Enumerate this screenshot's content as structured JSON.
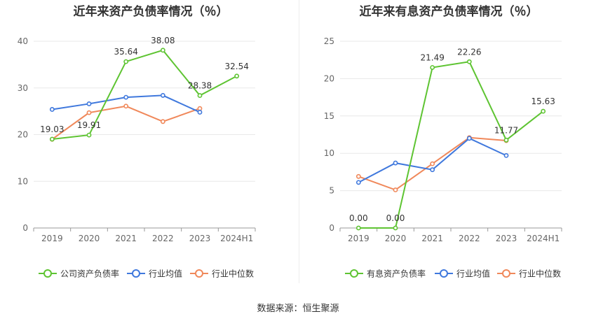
{
  "source_text": "数据来源：恒生聚源",
  "chart_data": [
    {
      "type": "line",
      "title": "近年来资产负债率情况（％）",
      "categories": [
        "2019",
        "2020",
        "2021",
        "2022",
        "2023",
        "2024H1"
      ],
      "ylim": [
        0,
        40
      ],
      "yticks": [
        0,
        10,
        20,
        30,
        40
      ],
      "grid": true,
      "legend_position": "bottom",
      "series": [
        {
          "name": "公司资产负债率",
          "color": "#5ec432",
          "values": [
            19.03,
            19.91,
            35.64,
            38.08,
            28.38,
            32.54
          ],
          "labels": [
            "19.03",
            "19.91",
            "35.64",
            "38.08",
            "28.38",
            "32.54"
          ]
        },
        {
          "name": "行业均值",
          "color": "#3f78dd",
          "values": [
            25.4,
            26.6,
            28.0,
            28.4,
            24.8,
            null
          ]
        },
        {
          "name": "行业中位数",
          "color": "#f0885a",
          "values": [
            19.0,
            24.7,
            26.1,
            22.8,
            25.6,
            null
          ]
        }
      ]
    },
    {
      "type": "line",
      "title": "近年来有息资产负债率情况（％）",
      "categories": [
        "2019",
        "2020",
        "2021",
        "2022",
        "2023",
        "2024H1"
      ],
      "ylim": [
        0,
        25
      ],
      "yticks": [
        0,
        5,
        10,
        15,
        20,
        25
      ],
      "grid": true,
      "legend_position": "bottom",
      "series": [
        {
          "name": "有息资产负债率",
          "color": "#5ec432",
          "values": [
            0.0,
            0.0,
            21.49,
            22.26,
            11.77,
            15.63
          ],
          "labels": [
            "0.00",
            "0.00",
            "21.49",
            "22.26",
            "11.77",
            "15.63"
          ]
        },
        {
          "name": "行业均值",
          "color": "#3f78dd",
          "values": [
            6.1,
            8.7,
            7.8,
            12.0,
            9.7,
            null
          ]
        },
        {
          "name": "行业中位数",
          "color": "#f0885a",
          "values": [
            6.9,
            5.1,
            8.6,
            12.1,
            11.7,
            null
          ]
        }
      ]
    }
  ]
}
